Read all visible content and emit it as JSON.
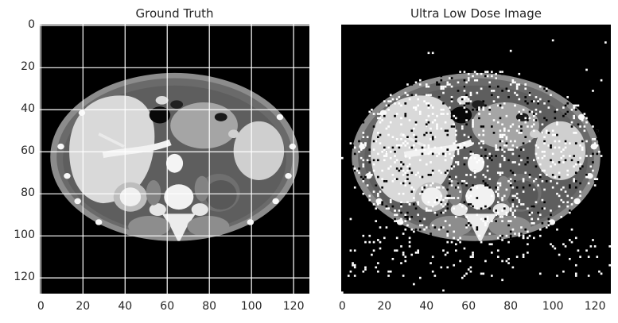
{
  "panels": [
    {
      "title": "Ground Truth",
      "x_ticks": [
        "0",
        "20",
        "40",
        "60",
        "80",
        "100",
        "120"
      ],
      "y_ticks": [
        "0",
        "20",
        "40",
        "60",
        "80",
        "100",
        "120"
      ],
      "grid": true
    },
    {
      "title": "Ultra Low Dose Image",
      "x_ticks": [
        "0",
        "20",
        "40",
        "60",
        "80",
        "100",
        "120"
      ],
      "y_ticks": [],
      "grid": false
    }
  ],
  "image_size": [
    128,
    128
  ]
}
